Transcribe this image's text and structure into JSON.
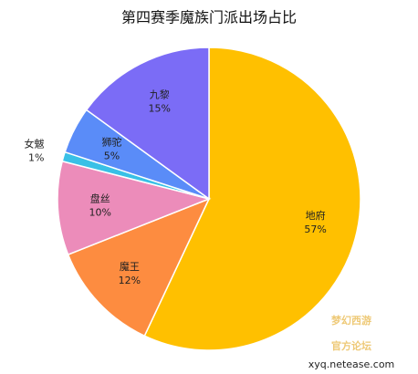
{
  "chart_data": {
    "type": "pie",
    "title": "第四赛季魔族门派出场占比",
    "categories": [
      "地府",
      "魔王",
      "盘丝",
      "女魃",
      "狮驼",
      "九黎"
    ],
    "values": [
      57,
      12,
      10,
      1,
      5,
      15
    ],
    "value_labels": [
      "57%",
      "12%",
      "10%",
      "1%",
      "5%",
      "15%"
    ],
    "colors": [
      "#ffc000",
      "#fd8c40",
      "#ec8cba",
      "#39c0e6",
      "#5a8cf8",
      "#7b6cf6"
    ]
  },
  "watermark": {
    "title": "梦幻西游",
    "subtitle": "官方论坛",
    "url": "xyq.netease.com"
  }
}
